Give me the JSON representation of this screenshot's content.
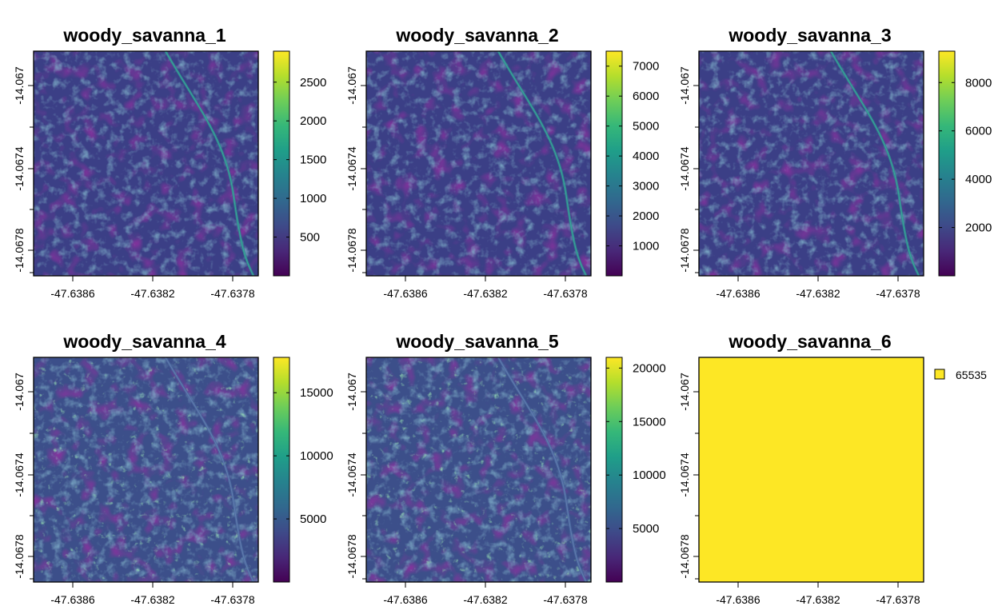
{
  "chart_data": [
    {
      "type": "heatmap",
      "title": "woody_savanna_1",
      "x_ticks": [
        "-47.6386",
        "-47.6382",
        "-47.6378"
      ],
      "y_ticks": [
        "-14.067",
        "-14.0674",
        "-14.0678"
      ],
      "colorbar": {
        "min": 0,
        "max": 2900,
        "ticks": [
          500,
          1000,
          1500,
          2000,
          2500
        ]
      },
      "has_road": true,
      "texture": "canopy"
    },
    {
      "type": "heatmap",
      "title": "woody_savanna_2",
      "x_ticks": [
        "-47.6386",
        "-47.6382",
        "-47.6378"
      ],
      "y_ticks": [
        "-14.067",
        "-14.0674",
        "-14.0678"
      ],
      "colorbar": {
        "min": 0,
        "max": 7500,
        "ticks": [
          1000,
          2000,
          3000,
          4000,
          5000,
          6000,
          7000
        ]
      },
      "has_road": true,
      "texture": "canopy"
    },
    {
      "type": "heatmap",
      "title": "woody_savanna_3",
      "x_ticks": [
        "-47.6386",
        "-47.6382",
        "-47.6378"
      ],
      "y_ticks": [
        "-14.067",
        "-14.0674",
        "-14.0678"
      ],
      "colorbar": {
        "min": 0,
        "max": 9300,
        "ticks": [
          2000,
          4000,
          6000,
          8000
        ]
      },
      "has_road": true,
      "texture": "canopy"
    },
    {
      "type": "heatmap",
      "title": "woody_savanna_4",
      "x_ticks": [
        "-47.6386",
        "-47.6382",
        "-47.6378"
      ],
      "y_ticks": [
        "-14.067",
        "-14.0674",
        "-14.0678"
      ],
      "colorbar": {
        "min": 0,
        "max": 17800,
        "ticks": [
          5000,
          10000,
          15000
        ]
      },
      "has_road": true,
      "texture": "canopy-bright"
    },
    {
      "type": "heatmap",
      "title": "woody_savanna_5",
      "x_ticks": [
        "-47.6386",
        "-47.6382",
        "-47.6378"
      ],
      "y_ticks": [
        "-14.067",
        "-14.0674",
        "-14.0678"
      ],
      "colorbar": {
        "min": 0,
        "max": 21000,
        "ticks": [
          5000,
          10000,
          15000,
          20000
        ]
      },
      "has_road": true,
      "texture": "canopy-bright"
    },
    {
      "type": "heatmap",
      "title": "woody_savanna_6",
      "x_ticks": [
        "-47.6386",
        "-47.6382",
        "-47.6378"
      ],
      "y_ticks": [
        "-14.067",
        "-14.0674",
        "-14.0678"
      ],
      "constant_value": 65535,
      "fill_color": "#FDE725",
      "legend": {
        "label": "65535",
        "color": "#FDE725"
      }
    }
  ],
  "colors": {
    "viridis": [
      "#440154",
      "#482878",
      "#3E4A89",
      "#31688E",
      "#26828E",
      "#1F9E89",
      "#35B779",
      "#6DCD59",
      "#B4DE2C",
      "#FDE725"
    ]
  }
}
